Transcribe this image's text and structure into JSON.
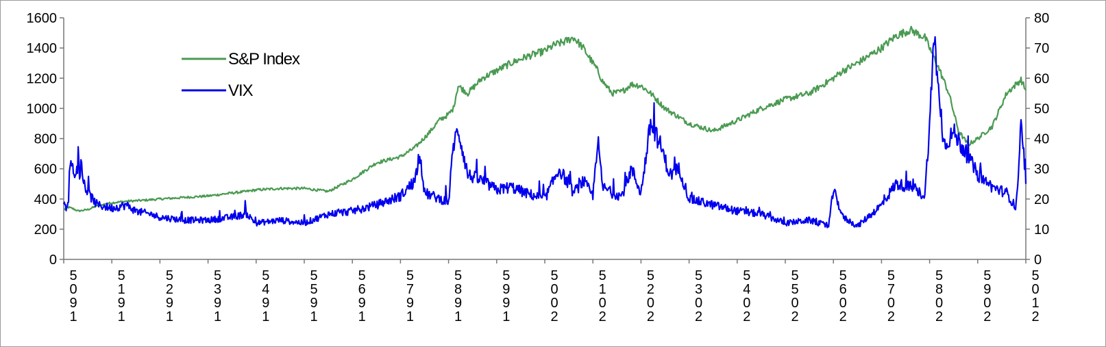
{
  "chart_data": {
    "type": "line",
    "title": "",
    "xlabel": "",
    "ylabel": "",
    "y2label": "",
    "x_tick_labels": [
      "5091",
      "5191",
      "5291",
      "5391",
      "5491",
      "5591",
      "5691",
      "5791",
      "5891",
      "5991",
      "5002",
      "5102",
      "5202",
      "5302",
      "5402",
      "5502",
      "5602",
      "5702",
      "5802",
      "5902",
      "5012"
    ],
    "x_tick_glyph_columns": [
      [
        "5",
        "0",
        "9",
        "1"
      ],
      [
        "5",
        "1",
        "9",
        "1"
      ],
      [
        "5",
        "2",
        "9",
        "1"
      ],
      [
        "5",
        "3",
        "9",
        "1"
      ],
      [
        "5",
        "4",
        "9",
        "1"
      ],
      [
        "5",
        "5",
        "9",
        "1"
      ],
      [
        "5",
        "6",
        "9",
        "1"
      ],
      [
        "5",
        "7",
        "9",
        "1"
      ],
      [
        "5",
        "8",
        "9",
        "1"
      ],
      [
        "5",
        "9",
        "9",
        "1"
      ],
      [
        "5",
        "0",
        "0",
        "2"
      ],
      [
        "5",
        "1",
        "0",
        "2"
      ],
      [
        "5",
        "2",
        "0",
        "2"
      ],
      [
        "5",
        "3",
        "0",
        "2"
      ],
      [
        "5",
        "4",
        "0",
        "2"
      ],
      [
        "5",
        "5",
        "0",
        "2"
      ],
      [
        "5",
        "6",
        "0",
        "2"
      ],
      [
        "5",
        "7",
        "0",
        "2"
      ],
      [
        "5",
        "8",
        "0",
        "2"
      ],
      [
        "5",
        "9",
        "0",
        "2"
      ],
      [
        "5",
        "0",
        "1",
        "2"
      ]
    ],
    "y_left": {
      "min": 0,
      "max": 1600,
      "ticks": [
        0,
        200,
        400,
        600,
        800,
        1000,
        1200,
        1400,
        1600
      ]
    },
    "y_right": {
      "min": 0,
      "max": 80,
      "ticks": [
        0,
        10,
        20,
        30,
        40,
        50,
        60,
        70,
        80
      ]
    },
    "grid": false,
    "legend_position": "top-left",
    "series": [
      {
        "name": "S&P Index",
        "axis": "left",
        "color": "#4a9a52",
        "x": [
          0,
          0.1,
          0.2,
          0.3,
          0.5,
          0.7,
          1.0,
          1.3,
          1.6,
          2.0,
          2.5,
          3.0,
          3.5,
          3.8,
          4.0,
          4.5,
          5.0,
          5.5,
          6.0,
          6.5,
          7.0,
          7.3,
          7.6,
          7.8,
          8.0,
          8.1,
          8.15,
          8.2,
          8.4,
          8.7,
          9.0,
          9.3,
          9.6,
          10.0,
          10.2,
          10.4,
          10.6,
          10.8,
          11.0,
          11.1,
          11.2,
          11.4,
          11.6,
          11.8,
          12.0,
          12.2,
          12.5,
          12.8,
          13.0,
          13.5,
          14.0,
          14.5,
          15.0,
          15.5,
          16.0,
          16.2,
          16.5,
          17.0,
          17.3,
          17.6,
          17.9,
          18.0,
          18.2,
          18.4,
          18.6,
          18.8,
          19.0,
          19.3,
          19.6,
          19.9,
          20.0
        ],
        "values": [
          330,
          345,
          335,
          320,
          330,
          355,
          375,
          385,
          390,
          400,
          410,
          420,
          440,
          450,
          460,
          470,
          470,
          450,
          530,
          640,
          680,
          740,
          840,
          920,
          960,
          1000,
          1080,
          1150,
          1100,
          1200,
          1250,
          1300,
          1340,
          1380,
          1420,
          1440,
          1470,
          1400,
          1300,
          1250,
          1180,
          1100,
          1110,
          1160,
          1150,
          1100,
          1000,
          940,
          900,
          850,
          920,
          1000,
          1060,
          1100,
          1200,
          1250,
          1300,
          1400,
          1480,
          1520,
          1470,
          1400,
          1260,
          1100,
          850,
          760,
          800,
          880,
          1100,
          1190,
          1120
        ]
      },
      {
        "name": "VIX",
        "axis": "right",
        "color": "#0000ee",
        "x": [
          0,
          0.05,
          0.1,
          0.15,
          0.2,
          0.3,
          0.5,
          0.7,
          1.0,
          1.3,
          1.5,
          1.8,
          2.0,
          2.5,
          3.0,
          3.5,
          3.8,
          4.0,
          4.5,
          5.0,
          5.5,
          6.0,
          6.5,
          7.0,
          7.3,
          7.4,
          7.5,
          8.0,
          8.1,
          8.2,
          8.4,
          8.7,
          9.0,
          9.3,
          9.6,
          10.0,
          10.3,
          10.6,
          10.8,
          11.0,
          11.1,
          11.2,
          11.4,
          11.6,
          11.8,
          12.0,
          12.2,
          12.4,
          12.6,
          12.8,
          13.0,
          13.5,
          14.0,
          14.5,
          15.0,
          15.5,
          15.9,
          16.0,
          16.2,
          16.5,
          17.0,
          17.3,
          17.6,
          17.9,
          18.0,
          18.1,
          18.2,
          18.3,
          18.5,
          18.8,
          19.0,
          19.3,
          19.6,
          19.8,
          19.9,
          20.0
        ],
        "values": [
          18,
          17,
          19,
          34,
          29,
          30,
          22,
          18,
          17,
          18,
          16,
          15,
          14,
          13,
          13,
          14,
          15,
          12,
          13,
          12,
          15,
          16,
          18,
          21,
          26,
          36,
          22,
          19,
          38,
          43,
          28,
          26,
          23,
          24,
          22,
          20,
          30,
          22,
          26,
          21,
          40,
          24,
          22,
          21,
          30,
          22,
          45,
          38,
          28,
          30,
          20,
          18,
          16,
          15,
          12,
          13,
          11,
          23,
          14,
          11,
          18,
          25,
          24,
          21,
          45,
          75,
          52,
          38,
          42,
          34,
          28,
          24,
          22,
          17,
          44,
          25
        ]
      }
    ]
  }
}
